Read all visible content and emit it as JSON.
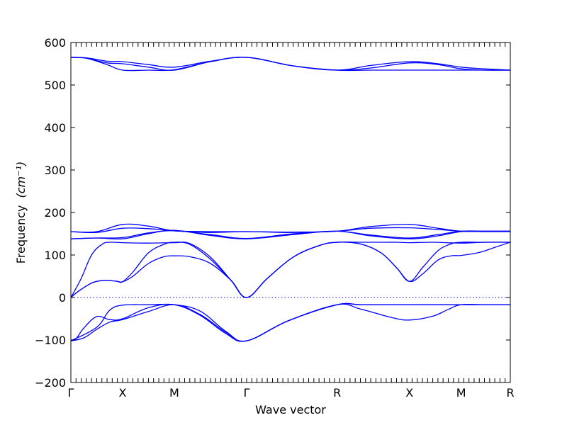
{
  "chart_data": {
    "type": "line",
    "title": "",
    "xlabel": "Wave vector",
    "ylabel": "Frequency",
    "ylabel_unit": "(cm⁻¹)",
    "ylim": [
      -200,
      600
    ],
    "yticks": [
      -200,
      -100,
      0,
      100,
      200,
      300,
      400,
      500,
      600
    ],
    "xlim": [
      0,
      8.5
    ],
    "high_symmetry_points": [
      {
        "label": "Γ",
        "x": 0
      },
      {
        "label": "X",
        "x": 1
      },
      {
        "label": "M",
        "x": 2
      },
      {
        "label": "Γ",
        "x": 3.4
      },
      {
        "label": "R",
        "x": 5.15
      },
      {
        "label": "X",
        "x": 6.55
      },
      {
        "label": "M",
        "x": 7.55
      },
      {
        "label": "R",
        "x": 8.5
      }
    ],
    "minor_tick_step": 0.1,
    "zero_line": {
      "y": 0,
      "style": "dotted"
    },
    "grid": false,
    "legend": "none",
    "line_color": "#0000ff",
    "series": [
      {
        "x": [
          0,
          0.1,
          0.25,
          0.5,
          0.75,
          1,
          1.5,
          2,
          2.5,
          3,
          3.4,
          4.2,
          5.15,
          5.6,
          6.2,
          6.55,
          7,
          7.3,
          7.55,
          8,
          8.5
        ],
        "values": [
          -102,
          -97,
          -72,
          -45,
          -52,
          -50,
          -24,
          -17,
          -42,
          -85,
          -102,
          -55,
          -17,
          -27,
          -47,
          -53,
          -44,
          -28,
          -17,
          -17,
          -17
        ]
      },
      {
        "x": [
          0,
          0.25,
          0.5,
          0.75,
          1,
          1.5,
          2,
          2.5,
          3,
          3.4,
          4.2,
          5.15,
          5.6,
          6.2,
          6.55,
          7,
          7.55,
          8,
          8.5
        ],
        "values": [
          -102,
          -95,
          -75,
          -58,
          -52,
          -33,
          -17,
          -40,
          -82,
          -102,
          -55,
          -17,
          -17,
          -17,
          -17,
          -17,
          -17,
          -17,
          -17
        ]
      },
      {
        "x": [
          0,
          0.5,
          0.75,
          1,
          1.5,
          2,
          2.5,
          3,
          3.4,
          4.2,
          5.15,
          5.6,
          6.2,
          6.55,
          7,
          7.55,
          8,
          8.5
        ],
        "values": [
          -102,
          -70,
          -30,
          -18,
          -17,
          -17,
          -32,
          -80,
          -102,
          -55,
          -17,
          -17,
          -17,
          -17,
          -17,
          -17,
          -17,
          -17
        ]
      },
      {
        "x": [
          0,
          0.15,
          0.4,
          0.6,
          0.75,
          0.9,
          1,
          1.2,
          1.5,
          1.8,
          2,
          2.3,
          2.7,
          3.1,
          3.4,
          3.8,
          4.3,
          4.8,
          5.15,
          5.6,
          6,
          6.3,
          6.55,
          6.8,
          7.1,
          7.35,
          7.55,
          7.9,
          8.2,
          8.5
        ],
        "values": [
          0,
          15,
          34,
          40,
          40,
          38,
          37,
          50,
          80,
          96,
          98,
          96,
          80,
          40,
          0,
          45,
          95,
          122,
          130,
          126,
          105,
          70,
          38,
          55,
          88,
          98,
          99,
          106,
          118,
          130
        ]
      },
      {
        "x": [
          0,
          0.15,
          0.4,
          0.6,
          0.75,
          0.9,
          1,
          1.2,
          1.5,
          1.8,
          2,
          2.3,
          2.7,
          3.1,
          3.4,
          3.8,
          4.3,
          4.8,
          5.15,
          5.6,
          6,
          6.3,
          6.55,
          6.8,
          7.1,
          7.35,
          7.55,
          7.9,
          8.2,
          8.5
        ],
        "values": [
          0,
          15,
          34,
          40,
          40,
          38,
          37,
          60,
          105,
          125,
          130,
          125,
          90,
          40,
          0,
          45,
          95,
          122,
          130,
          126,
          105,
          70,
          38,
          70,
          110,
          126,
          130,
          130,
          130,
          130
        ]
      },
      {
        "x": [
          0,
          0.2,
          0.4,
          0.6,
          0.75,
          1,
          1.5,
          2,
          2.3,
          2.7,
          3.1,
          3.4,
          3.8,
          4.3,
          4.8,
          5.15,
          5.6,
          6,
          6.3,
          6.55,
          7,
          7.55,
          8,
          8.5
        ],
        "values": [
          0,
          45,
          100,
          125,
          130,
          129,
          128,
          129,
          127,
          95,
          40,
          0,
          45,
          95,
          122,
          130,
          130,
          130,
          130,
          129,
          130,
          128,
          130,
          130
        ]
      },
      {
        "x": [
          0,
          0.5,
          1,
          1.5,
          2,
          2.7,
          3.4,
          4.3,
          5.15,
          5.8,
          6.55,
          7.1,
          7.55,
          8,
          8.5
        ],
        "values": [
          138,
          140,
          138,
          150,
          158,
          146,
          138,
          148,
          156,
          145,
          138,
          145,
          155,
          155,
          155
        ]
      },
      {
        "x": [
          0,
          0.5,
          1,
          1.5,
          2,
          2.7,
          3.4,
          4.3,
          5.15,
          5.8,
          6.55,
          7.1,
          7.55,
          8,
          8.5
        ],
        "values": [
          138,
          140,
          141,
          152,
          157,
          148,
          139,
          150,
          156,
          147,
          140,
          148,
          156,
          156,
          156
        ]
      },
      {
        "x": [
          0,
          0.5,
          1,
          1.5,
          2,
          2.7,
          3.4,
          4.3,
          5.15,
          5.8,
          6.55,
          7.1,
          7.55,
          8,
          8.5
        ],
        "values": [
          155,
          153,
          163,
          162,
          157,
          153,
          155,
          153,
          156,
          163,
          164,
          160,
          156,
          156,
          156
        ]
      },
      {
        "x": [
          0,
          0.5,
          1,
          1.5,
          2,
          2.7,
          3.4,
          4.3,
          5.15,
          5.8,
          6.55,
          7.1,
          7.55,
          8,
          8.5
        ],
        "values": [
          155,
          155,
          172,
          168,
          157,
          155,
          155,
          154,
          156,
          167,
          172,
          163,
          156,
          156,
          156
        ]
      },
      {
        "x": [
          0,
          0.3,
          0.7,
          1,
          1.5,
          2,
          2.7,
          3.4,
          4.3,
          5.15,
          5.8,
          6.55,
          7.1,
          7.55,
          8,
          8.5
        ],
        "values": [
          565,
          563,
          548,
          535,
          535,
          536,
          555,
          565,
          545,
          535,
          535,
          535,
          535,
          535,
          535,
          535
        ]
      },
      {
        "x": [
          0,
          0.3,
          0.7,
          1,
          1.5,
          2,
          2.7,
          3.4,
          4.3,
          5.15,
          5.8,
          6.55,
          7.1,
          7.55,
          8,
          8.5
        ],
        "values": [
          565,
          563,
          552,
          550,
          542,
          535,
          555,
          565,
          545,
          535,
          540,
          552,
          548,
          538,
          535,
          535
        ]
      },
      {
        "x": [
          0,
          0.3,
          0.7,
          1,
          1.5,
          2,
          2.7,
          3.4,
          4.3,
          5.15,
          5.8,
          6.55,
          7.1,
          7.55,
          8,
          8.5
        ],
        "values": [
          565,
          564,
          556,
          555,
          548,
          542,
          556,
          565,
          545,
          535,
          546,
          555,
          550,
          542,
          538,
          535
        ]
      }
    ]
  }
}
